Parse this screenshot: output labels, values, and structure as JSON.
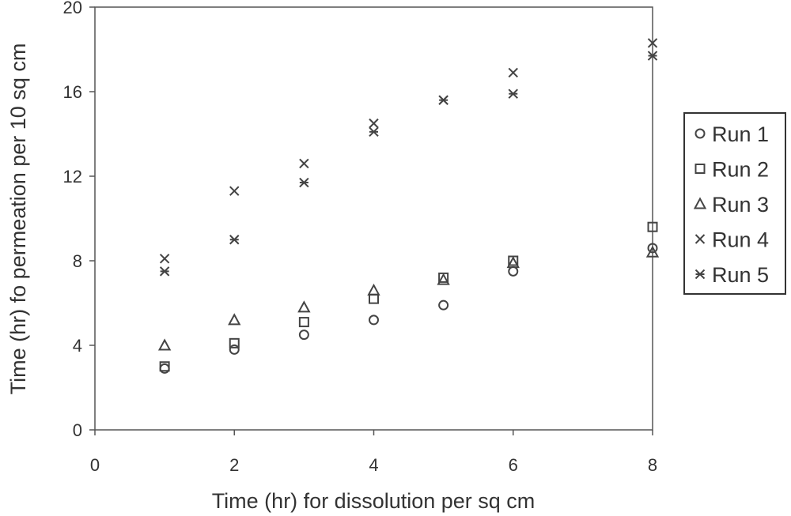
{
  "chart_data": {
    "type": "scatter",
    "xlabel": "Time (hr) for dissolution per sq cm",
    "ylabel": "Time (hr) fo permeation per 10 sq cm",
    "xlim": [
      0,
      8
    ],
    "ylim": [
      0,
      20
    ],
    "xticks": [
      "0",
      "2",
      "4",
      "6",
      "8"
    ],
    "yticks": [
      "0",
      "4",
      "8",
      "12",
      "16",
      "20"
    ],
    "grid": false,
    "legend": "right",
    "series": [
      {
        "name": "Run 1",
        "marker": "circle",
        "points": [
          [
            1,
            2.9
          ],
          [
            2,
            3.8
          ],
          [
            3,
            4.5
          ],
          [
            4,
            5.2
          ],
          [
            5,
            5.9
          ],
          [
            6,
            7.5
          ],
          [
            8,
            8.6
          ]
        ]
      },
      {
        "name": "Run 2",
        "marker": "square",
        "points": [
          [
            1,
            3.0
          ],
          [
            2,
            4.1
          ],
          [
            3,
            5.1
          ],
          [
            4,
            6.2
          ],
          [
            5,
            7.2
          ],
          [
            6,
            8.0
          ],
          [
            8,
            9.6
          ]
        ]
      },
      {
        "name": "Run 3",
        "marker": "triangle",
        "points": [
          [
            1,
            4.0
          ],
          [
            2,
            5.2
          ],
          [
            3,
            5.8
          ],
          [
            4,
            6.6
          ],
          [
            5,
            7.1
          ],
          [
            6,
            7.9
          ],
          [
            8,
            8.4
          ]
        ]
      },
      {
        "name": "Run 4",
        "marker": "x",
        "points": [
          [
            1,
            8.1
          ],
          [
            2,
            11.3
          ],
          [
            3,
            12.6
          ],
          [
            4,
            14.5
          ],
          [
            5,
            15.6
          ],
          [
            6,
            16.9
          ],
          [
            8,
            18.3
          ]
        ]
      },
      {
        "name": "Run 5",
        "marker": "asterisk",
        "points": [
          [
            1,
            7.5
          ],
          [
            2,
            9.0
          ],
          [
            3,
            11.7
          ],
          [
            4,
            14.1
          ],
          [
            5,
            15.6
          ],
          [
            6,
            15.9
          ],
          [
            8,
            17.7
          ]
        ]
      }
    ]
  }
}
